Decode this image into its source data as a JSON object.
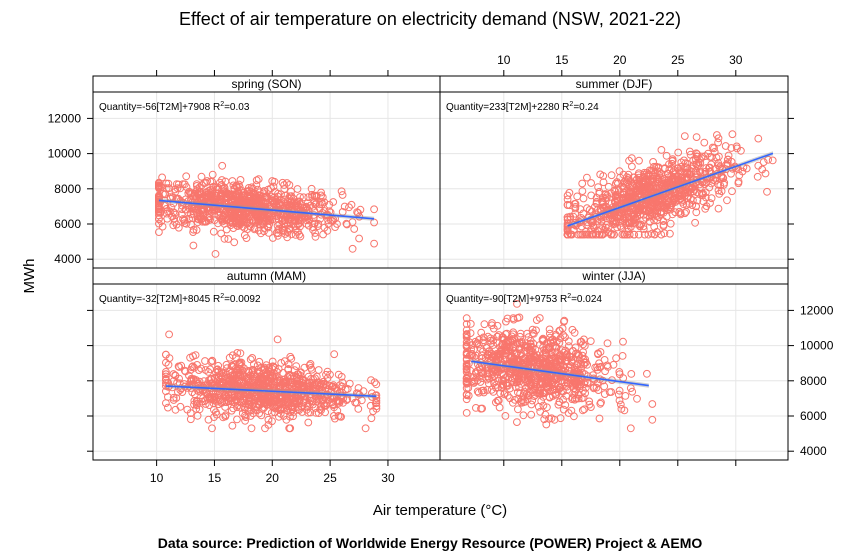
{
  "chart_data": {
    "type": "scatter",
    "title": "Effect of air temperature on electricity demand (NSW, 2021-22)",
    "xlabel": "Air temperature (°C)",
    "ylabel": "MWh",
    "caption": "Data source: Prediction of Worldwide Energy Resource (POWER) Project & AEMO",
    "xlim": [
      4.5,
      34.5
    ],
    "ylim": [
      3500,
      13500
    ],
    "x_ticks": [
      "10",
      "15",
      "20",
      "25",
      "30"
    ],
    "y_ticks": [
      "4000",
      "6000",
      "8000",
      "10000",
      "12000"
    ],
    "grid": true,
    "point_color": "#F8766D",
    "line_color": "#3366FF",
    "band_color": "#999999",
    "panels": [
      {
        "season": "spring (SON)",
        "equation": "Quantity=-56[T2M]+7908",
        "r2": "0.03",
        "fit_x": [
          10.2,
          28.8
        ],
        "x_range": [
          10.2,
          28.8
        ],
        "y_range": [
          4300,
          10200
        ],
        "cloud": {
          "cx": 17.5,
          "cy": 6900,
          "sx": 4.2,
          "sy": 700
        }
      },
      {
        "season": "summer (DJF)",
        "equation": "Quantity=233[T2M]+2280",
        "r2": "0.24",
        "fit_x": [
          15.5,
          33.2
        ],
        "x_range": [
          15.5,
          33.2
        ],
        "y_range": [
          5400,
          12400
        ],
        "cloud": {
          "cx": 22.5,
          "cy": 7500,
          "sx": 3.6,
          "sy": 950
        }
      },
      {
        "season": "autumn (MAM)",
        "equation": "Quantity=-32[T2M]+8045",
        "r2": "0.0092",
        "fit_x": [
          10.8,
          29.0
        ],
        "x_range": [
          10.8,
          29.0
        ],
        "y_range": [
          5300,
          11500
        ],
        "cloud": {
          "cx": 19.0,
          "cy": 7600,
          "sx": 4.0,
          "sy": 800
        }
      },
      {
        "season": "winter (JJA)",
        "equation": "Quantity=-90[T2M]+9753",
        "r2": "0.024",
        "fit_x": [
          7.2,
          22.5
        ],
        "x_range": [
          6.8,
          22.8
        ],
        "y_range": [
          5300,
          12900
        ],
        "cloud": {
          "cx": 12.5,
          "cy": 8600,
          "sx": 3.3,
          "sy": 1100
        }
      }
    ]
  }
}
